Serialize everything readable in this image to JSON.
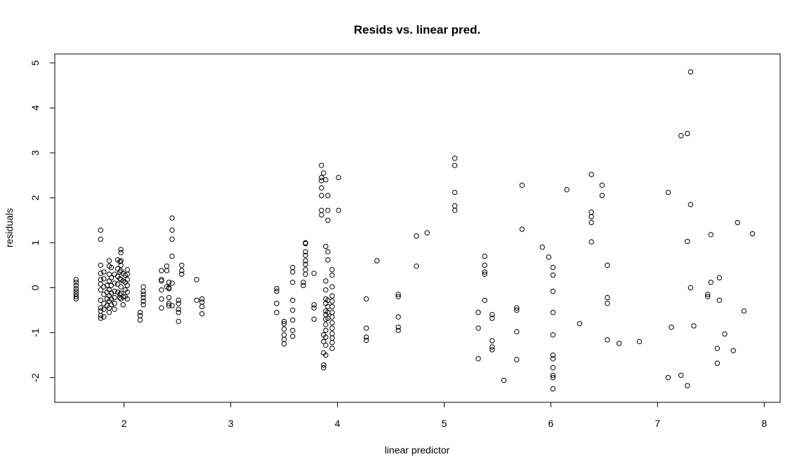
{
  "chart_data": {
    "type": "scatter",
    "title": "Resids vs. linear pred.",
    "xlabel": "linear predictor",
    "ylabel": "residuals",
    "xlim": [
      1.35,
      8.15
    ],
    "ylim": [
      -2.55,
      5.2
    ],
    "xticks": [
      2,
      3,
      4,
      5,
      6,
      7,
      8
    ],
    "yticks": [
      -2,
      -1,
      0,
      1,
      2,
      3,
      4,
      5
    ],
    "grid": false,
    "legend": "none",
    "marker": "open-circle",
    "color": "#000000",
    "points": [
      [
        1.55,
        0.18
      ],
      [
        1.55,
        0.12
      ],
      [
        1.55,
        0.05
      ],
      [
        1.55,
        -0.02
      ],
      [
        1.55,
        -0.08
      ],
      [
        1.55,
        -0.14
      ],
      [
        1.55,
        -0.2
      ],
      [
        1.55,
        -0.25
      ],
      [
        1.78,
        1.28
      ],
      [
        1.78,
        1.08
      ],
      [
        1.78,
        0.5
      ],
      [
        1.78,
        0.32
      ],
      [
        1.78,
        0.18
      ],
      [
        1.78,
        0.08
      ],
      [
        1.78,
        -0.05
      ],
      [
        1.78,
        -0.28
      ],
      [
        1.78,
        -0.45
      ],
      [
        1.78,
        -0.52
      ],
      [
        1.78,
        -0.62
      ],
      [
        1.78,
        -0.68
      ],
      [
        1.81,
        0.35
      ],
      [
        1.81,
        0.2
      ],
      [
        1.81,
        0.02
      ],
      [
        1.81,
        -0.15
      ],
      [
        1.81,
        -0.35
      ],
      [
        1.81,
        -0.48
      ],
      [
        1.81,
        -0.65
      ],
      [
        1.84,
        0.05
      ],
      [
        1.84,
        -0.1
      ],
      [
        1.84,
        -0.25
      ],
      [
        1.84,
        -0.4
      ],
      [
        1.86,
        0.6
      ],
      [
        1.86,
        0.48
      ],
      [
        1.86,
        0.3
      ],
      [
        1.86,
        0.15
      ],
      [
        1.86,
        -0.05
      ],
      [
        1.86,
        -0.18
      ],
      [
        1.86,
        -0.3
      ],
      [
        1.86,
        -0.45
      ],
      [
        1.86,
        -0.55
      ],
      [
        1.88,
        0.45
      ],
      [
        1.88,
        0.22
      ],
      [
        1.88,
        0.05
      ],
      [
        1.88,
        -0.12
      ],
      [
        1.88,
        -0.25
      ],
      [
        1.88,
        -0.38
      ],
      [
        1.91,
        0.3
      ],
      [
        1.91,
        0.1
      ],
      [
        1.91,
        -0.08
      ],
      [
        1.91,
        -0.22
      ],
      [
        1.91,
        -0.35
      ],
      [
        1.91,
        -0.48
      ],
      [
        1.94,
        0.62
      ],
      [
        1.94,
        0.42
      ],
      [
        1.94,
        0.25
      ],
      [
        1.94,
        0.08
      ],
      [
        1.94,
        -0.1
      ],
      [
        1.96,
        0.58
      ],
      [
        1.96,
        0.35
      ],
      [
        1.96,
        0.2
      ],
      [
        1.96,
        -0.15
      ],
      [
        1.96,
        -0.22
      ],
      [
        1.97,
        0.85
      ],
      [
        1.97,
        0.78
      ],
      [
        1.97,
        0.6
      ],
      [
        1.97,
        0.5
      ],
      [
        1.97,
        0.38
      ],
      [
        1.97,
        0.18
      ],
      [
        1.97,
        0.02
      ],
      [
        1.97,
        -0.12
      ],
      [
        1.97,
        -0.25
      ],
      [
        1.99,
        0.32
      ],
      [
        1.99,
        0.15
      ],
      [
        1.99,
        -0.2
      ],
      [
        1.99,
        -0.38
      ],
      [
        2.01,
        0.28
      ],
      [
        2.01,
        0.12
      ],
      [
        2.01,
        -0.05
      ],
      [
        2.01,
        -0.2
      ],
      [
        2.03,
        0.4
      ],
      [
        2.03,
        0.3
      ],
      [
        2.03,
        0.18
      ],
      [
        2.03,
        0.05
      ],
      [
        2.03,
        -0.1
      ],
      [
        2.03,
        -0.25
      ],
      [
        2.15,
        -0.55
      ],
      [
        2.15,
        -0.62
      ],
      [
        2.15,
        -0.72
      ],
      [
        2.18,
        0.02
      ],
      [
        2.18,
        -0.08
      ],
      [
        2.18,
        -0.15
      ],
      [
        2.18,
        -0.22
      ],
      [
        2.18,
        -0.3
      ],
      [
        2.18,
        -0.38
      ],
      [
        2.35,
        0.38
      ],
      [
        2.35,
        0.18
      ],
      [
        2.35,
        0.15
      ],
      [
        2.35,
        -0.05
      ],
      [
        2.35,
        -0.25
      ],
      [
        2.35,
        -0.45
      ],
      [
        2.4,
        0.48
      ],
      [
        2.4,
        0.02
      ],
      [
        2.4,
        0.38
      ],
      [
        2.42,
        0.12
      ],
      [
        2.42,
        0.0
      ],
      [
        2.42,
        -0.02
      ],
      [
        2.42,
        -0.22
      ],
      [
        2.42,
        -0.35
      ],
      [
        2.42,
        -0.4
      ],
      [
        2.45,
        1.55
      ],
      [
        2.45,
        1.28
      ],
      [
        2.45,
        1.08
      ],
      [
        2.45,
        0.7
      ],
      [
        2.45,
        0.1
      ],
      [
        2.45,
        -0.4
      ],
      [
        2.51,
        -0.28
      ],
      [
        2.51,
        -0.35
      ],
      [
        2.51,
        -0.48
      ],
      [
        2.51,
        -0.55
      ],
      [
        2.51,
        -0.75
      ],
      [
        2.54,
        0.5
      ],
      [
        2.54,
        0.38
      ],
      [
        2.54,
        0.3
      ],
      [
        2.68,
        0.18
      ],
      [
        2.68,
        -0.28
      ],
      [
        2.73,
        -0.25
      ],
      [
        2.73,
        -0.32
      ],
      [
        2.73,
        -0.42
      ],
      [
        2.73,
        -0.58
      ],
      [
        3.43,
        -0.02
      ],
      [
        3.43,
        -0.08
      ],
      [
        3.43,
        -0.35
      ],
      [
        3.43,
        -0.55
      ],
      [
        3.5,
        -0.75
      ],
      [
        3.5,
        -0.8
      ],
      [
        3.5,
        -0.92
      ],
      [
        3.5,
        -1.05
      ],
      [
        3.5,
        -1.15
      ],
      [
        3.5,
        -1.25
      ],
      [
        3.58,
        0.45
      ],
      [
        3.58,
        0.35
      ],
      [
        3.58,
        0.12
      ],
      [
        3.58,
        -0.28
      ],
      [
        3.58,
        -0.5
      ],
      [
        3.58,
        -0.72
      ],
      [
        3.58,
        -0.95
      ],
      [
        3.58,
        -1.08
      ],
      [
        3.68,
        0.12
      ],
      [
        3.68,
        0.05
      ],
      [
        3.7,
        1.0
      ],
      [
        3.7,
        0.98
      ],
      [
        3.7,
        0.8
      ],
      [
        3.7,
        0.72
      ],
      [
        3.7,
        0.6
      ],
      [
        3.7,
        0.52
      ],
      [
        3.7,
        0.4
      ],
      [
        3.7,
        0.3
      ],
      [
        3.78,
        0.32
      ],
      [
        3.78,
        -0.38
      ],
      [
        3.78,
        -0.45
      ],
      [
        3.78,
        -0.7
      ],
      [
        3.85,
        2.72
      ],
      [
        3.85,
        2.45
      ],
      [
        3.85,
        2.38
      ],
      [
        3.85,
        2.22
      ],
      [
        3.85,
        2.05
      ],
      [
        3.85,
        1.72
      ],
      [
        3.85,
        1.62
      ],
      [
        3.87,
        2.55
      ],
      [
        3.87,
        -1.05
      ],
      [
        3.87,
        -1.2
      ],
      [
        3.87,
        -1.45
      ],
      [
        3.87,
        -1.72
      ],
      [
        3.87,
        -1.78
      ],
      [
        3.89,
        2.4
      ],
      [
        3.89,
        0.92
      ],
      [
        3.89,
        0.15
      ],
      [
        3.89,
        -0.05
      ],
      [
        3.89,
        -0.25
      ],
      [
        3.89,
        -0.35
      ],
      [
        3.89,
        -0.52
      ],
      [
        3.89,
        -0.6
      ],
      [
        3.89,
        -0.7
      ],
      [
        3.89,
        -0.82
      ],
      [
        3.89,
        -0.95
      ],
      [
        3.89,
        -1.1
      ],
      [
        3.89,
        -1.28
      ],
      [
        3.89,
        -1.5
      ],
      [
        3.91,
        2.05
      ],
      [
        3.91,
        1.72
      ],
      [
        3.91,
        1.5
      ],
      [
        3.91,
        0.8
      ],
      [
        3.91,
        0.62
      ],
      [
        3.91,
        -0.28
      ],
      [
        3.91,
        -0.42
      ],
      [
        3.91,
        -0.55
      ],
      [
        3.91,
        -0.68
      ],
      [
        3.95,
        0.4
      ],
      [
        3.95,
        0.28
      ],
      [
        3.95,
        0.02
      ],
      [
        3.95,
        -0.18
      ],
      [
        3.95,
        -0.3
      ],
      [
        3.95,
        -0.42
      ],
      [
        3.95,
        -0.55
      ],
      [
        3.95,
        -0.65
      ],
      [
        3.95,
        -0.78
      ],
      [
        3.95,
        -0.9
      ],
      [
        3.95,
        -1.02
      ],
      [
        3.95,
        -1.12
      ],
      [
        3.95,
        -1.22
      ],
      [
        3.95,
        -1.35
      ],
      [
        4.01,
        2.45
      ],
      [
        4.01,
        1.72
      ],
      [
        4.27,
        -0.25
      ],
      [
        4.27,
        -0.9
      ],
      [
        4.27,
        -1.1
      ],
      [
        4.27,
        -1.17
      ],
      [
        4.37,
        0.6
      ],
      [
        4.57,
        -0.15
      ],
      [
        4.57,
        -0.2
      ],
      [
        4.57,
        -0.65
      ],
      [
        4.57,
        -0.88
      ],
      [
        4.57,
        -0.95
      ],
      [
        4.74,
        1.15
      ],
      [
        4.74,
        0.48
      ],
      [
        4.84,
        1.22
      ],
      [
        5.1,
        2.88
      ],
      [
        5.1,
        2.72
      ],
      [
        5.1,
        2.12
      ],
      [
        5.1,
        1.82
      ],
      [
        5.1,
        1.72
      ],
      [
        5.32,
        -0.55
      ],
      [
        5.32,
        -0.9
      ],
      [
        5.32,
        -1.58
      ],
      [
        5.38,
        0.7
      ],
      [
        5.38,
        0.5
      ],
      [
        5.38,
        0.35
      ],
      [
        5.38,
        0.3
      ],
      [
        5.38,
        -0.28
      ],
      [
        5.45,
        -0.6
      ],
      [
        5.45,
        -0.68
      ],
      [
        5.45,
        -1.18
      ],
      [
        5.45,
        -1.32
      ],
      [
        5.45,
        -1.38
      ],
      [
        5.56,
        -2.06
      ],
      [
        5.68,
        -0.45
      ],
      [
        5.68,
        -0.5
      ],
      [
        5.68,
        -0.98
      ],
      [
        5.68,
        -1.6
      ],
      [
        5.73,
        2.28
      ],
      [
        5.73,
        1.3
      ],
      [
        5.92,
        0.9
      ],
      [
        5.98,
        0.68
      ],
      [
        6.02,
        0.45
      ],
      [
        6.02,
        0.28
      ],
      [
        6.02,
        -0.08
      ],
      [
        6.02,
        -0.55
      ],
      [
        6.02,
        -1.05
      ],
      [
        6.02,
        -1.5
      ],
      [
        6.02,
        -1.58
      ],
      [
        6.02,
        -1.78
      ],
      [
        6.02,
        -1.95
      ],
      [
        6.02,
        -2.0
      ],
      [
        6.02,
        -2.25
      ],
      [
        6.15,
        2.18
      ],
      [
        6.27,
        -0.8
      ],
      [
        6.38,
        2.52
      ],
      [
        6.38,
        1.68
      ],
      [
        6.38,
        1.58
      ],
      [
        6.38,
        1.45
      ],
      [
        6.38,
        1.02
      ],
      [
        6.48,
        2.28
      ],
      [
        6.48,
        2.05
      ],
      [
        6.53,
        0.5
      ],
      [
        6.53,
        -0.22
      ],
      [
        6.53,
        -0.35
      ],
      [
        6.53,
        -1.16
      ],
      [
        6.64,
        -1.24
      ],
      [
        6.83,
        -1.2
      ],
      [
        7.1,
        2.12
      ],
      [
        7.1,
        -2.0
      ],
      [
        7.13,
        -0.88
      ],
      [
        7.22,
        3.38
      ],
      [
        7.22,
        -1.95
      ],
      [
        7.28,
        3.43
      ],
      [
        7.28,
        1.03
      ],
      [
        7.28,
        -2.18
      ],
      [
        7.31,
        4.8
      ],
      [
        7.31,
        1.85
      ],
      [
        7.31,
        0.0
      ],
      [
        7.34,
        -0.85
      ],
      [
        7.47,
        -0.15
      ],
      [
        7.47,
        -0.2
      ],
      [
        7.5,
        1.18
      ],
      [
        7.5,
        0.12
      ],
      [
        7.56,
        -1.35
      ],
      [
        7.56,
        -1.68
      ],
      [
        7.58,
        0.22
      ],
      [
        7.58,
        -0.28
      ],
      [
        7.63,
        -1.03
      ],
      [
        7.71,
        -1.4
      ],
      [
        7.75,
        1.45
      ],
      [
        7.81,
        -0.52
      ],
      [
        7.89,
        1.2
      ]
    ]
  }
}
